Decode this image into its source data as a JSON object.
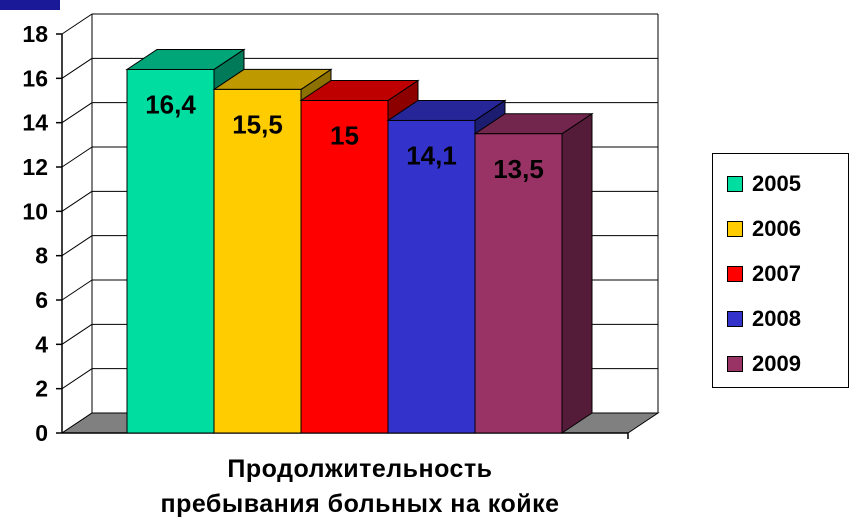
{
  "chart_data": {
    "type": "bar",
    "categories": [
      "2005",
      "2006",
      "2007",
      "2008",
      "2009"
    ],
    "values": [
      16.4,
      15.5,
      15,
      14.1,
      13.5
    ],
    "value_labels": [
      "16,4",
      "15,5",
      "15",
      "14,1",
      "13,5"
    ],
    "series_colors": [
      "#00DDA0",
      "#FFCC00",
      "#FF0000",
      "#3333CC",
      "#993366"
    ],
    "yticks": [
      "0",
      "2",
      "4",
      "6",
      "8",
      "10",
      "12",
      "14",
      "16",
      "18"
    ],
    "ylim": [
      0,
      18
    ],
    "grid": true,
    "legend_position": "right",
    "xlabel_line1": "Продолжительность",
    "xlabel_line2": "пребывания больных на койке",
    "three_d": true
  }
}
